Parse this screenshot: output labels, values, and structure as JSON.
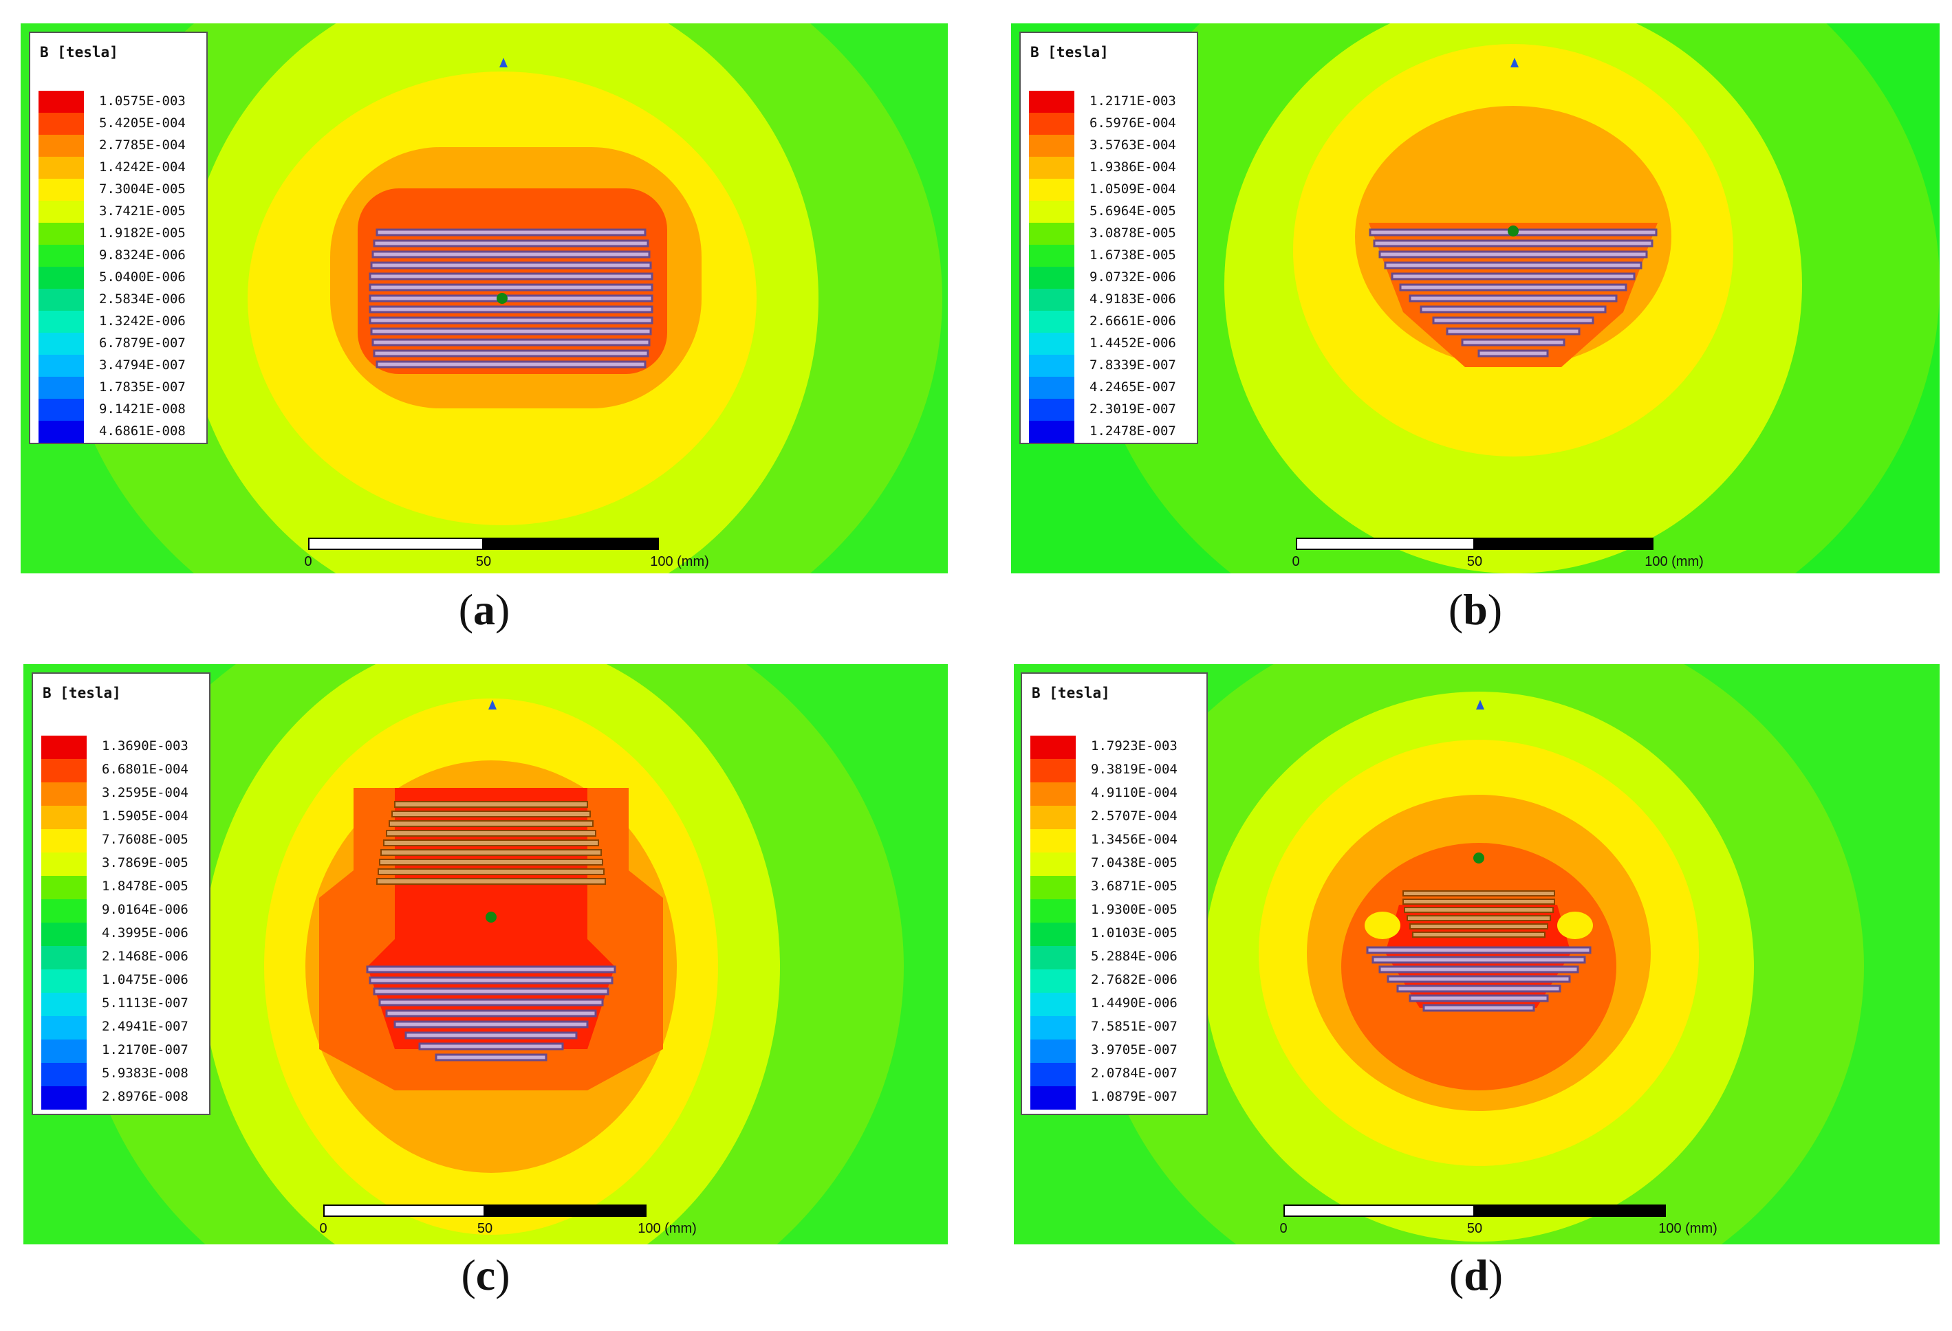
{
  "panels": [
    {
      "caption_letter": "a",
      "legend_title": "B [tesla]",
      "legend_values": [
        "1.0575E-003",
        "5.4205E-004",
        "2.7785E-004",
        "1.4242E-004",
        "7.3004E-005",
        "3.7421E-005",
        "1.9182E-005",
        "9.8324E-006",
        "5.0400E-006",
        "2.5834E-006",
        "1.3242E-006",
        "6.7879E-007",
        "3.4794E-007",
        "1.7835E-007",
        "9.1421E-008",
        "4.6861E-008"
      ],
      "scale": {
        "tick0": "0",
        "tick1": "50",
        "tick2": "100 (mm)"
      },
      "coil": "rectangular"
    },
    {
      "caption_letter": "b",
      "legend_title": "B [tesla]",
      "legend_values": [
        "1.2171E-003",
        "6.5976E-004",
        "3.5763E-004",
        "1.9386E-004",
        "1.0509E-004",
        "5.6964E-005",
        "3.0878E-005",
        "1.6738E-005",
        "9.0732E-006",
        "4.9183E-006",
        "2.6661E-006",
        "1.4452E-006",
        "7.8339E-007",
        "4.2465E-007",
        "2.3019E-007",
        "1.2478E-007"
      ],
      "scale": {
        "tick0": "0",
        "tick1": "50",
        "tick2": "100 (mm)"
      },
      "coil": "trapezoid"
    },
    {
      "caption_letter": "c",
      "legend_title": "B [tesla]",
      "legend_values": [
        "1.3690E-003",
        "6.6801E-004",
        "3.2595E-004",
        "1.5905E-004",
        "7.7608E-005",
        "3.7869E-005",
        "1.8478E-005",
        "9.0164E-006",
        "4.3995E-006",
        "2.1468E-006",
        "1.0475E-006",
        "5.1113E-007",
        "2.4941E-007",
        "1.2170E-007",
        "5.9383E-008",
        "2.8976E-008"
      ],
      "scale": {
        "tick0": "0",
        "tick1": "50",
        "tick2": "100 (mm)"
      },
      "coil": "double"
    },
    {
      "caption_letter": "d",
      "legend_title": "B [tesla]",
      "legend_values": [
        "1.7923E-003",
        "9.3819E-004",
        "4.9110E-004",
        "2.5707E-004",
        "1.3456E-004",
        "7.0438E-005",
        "3.6871E-005",
        "1.9300E-005",
        "1.0103E-005",
        "5.2884E-006",
        "2.7682E-006",
        "1.4490E-006",
        "7.5851E-007",
        "3.9705E-007",
        "2.0784E-007",
        "1.0879E-007"
      ],
      "scale": {
        "tick0": "0",
        "tick1": "50",
        "tick2": "100 (mm)"
      },
      "coil": "double-compact"
    }
  ],
  "legend_colors": [
    "#ee0000",
    "#ff4400",
    "#ff8800",
    "#ffbb00",
    "#ffee00",
    "#ddff00",
    "#66ee00",
    "#22ee22",
    "#00dd44",
    "#00dd88",
    "#00eebb",
    "#00ddee",
    "#00bbff",
    "#0088ff",
    "#0044ff",
    "#0000ee"
  ],
  "field_colors": {
    "outer": "#33ee22",
    "green": "#55ee11",
    "lime": "#bbff00",
    "yellow": "#ffee00",
    "orange": "#ffaa00",
    "darkorange": "#ff7700",
    "red": "#ff3300",
    "coil": "#9a6a8a"
  }
}
